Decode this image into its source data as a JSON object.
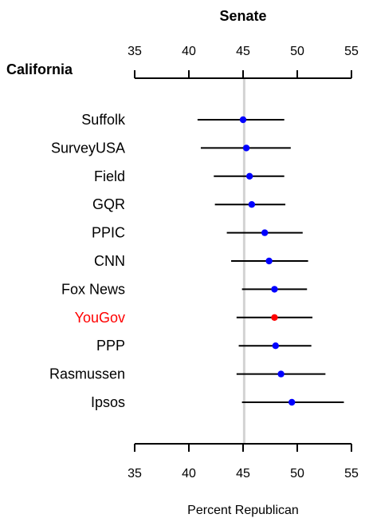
{
  "chart_data": {
    "type": "scatter",
    "title": "Senate",
    "subtitle": "California",
    "xlabel": "Percent Republican",
    "xlim": [
      35,
      55
    ],
    "xticks": [
      35,
      40,
      45,
      50,
      55
    ],
    "reference_line": 45.1,
    "colors": {
      "default": "#0000ff",
      "highlight": "#ff0000",
      "ci": "#000000",
      "reference": "#d3d3d3"
    },
    "pollsters": [
      {
        "name": "Suffolk",
        "value": 45.0,
        "low": 40.8,
        "high": 48.8,
        "highlight": false
      },
      {
        "name": "SurveyUSA",
        "value": 45.3,
        "low": 41.1,
        "high": 49.4,
        "highlight": false
      },
      {
        "name": "Field",
        "value": 45.6,
        "low": 42.3,
        "high": 48.8,
        "highlight": false
      },
      {
        "name": "GQR",
        "value": 45.8,
        "low": 42.4,
        "high": 48.9,
        "highlight": false
      },
      {
        "name": "PPIC",
        "value": 47.0,
        "low": 43.5,
        "high": 50.5,
        "highlight": false
      },
      {
        "name": "CNN",
        "value": 47.4,
        "low": 43.9,
        "high": 51.0,
        "highlight": false
      },
      {
        "name": "Fox News",
        "value": 47.9,
        "low": 44.9,
        "high": 50.9,
        "highlight": false
      },
      {
        "name": "YouGov",
        "value": 47.9,
        "low": 44.4,
        "high": 51.4,
        "highlight": true
      },
      {
        "name": "PPP",
        "value": 48.0,
        "low": 44.6,
        "high": 51.3,
        "highlight": false
      },
      {
        "name": "Rasmussen",
        "value": 48.5,
        "low": 44.4,
        "high": 52.6,
        "highlight": false
      },
      {
        "name": "Ipsos",
        "value": 49.5,
        "low": 44.9,
        "high": 54.3,
        "highlight": false
      }
    ]
  }
}
